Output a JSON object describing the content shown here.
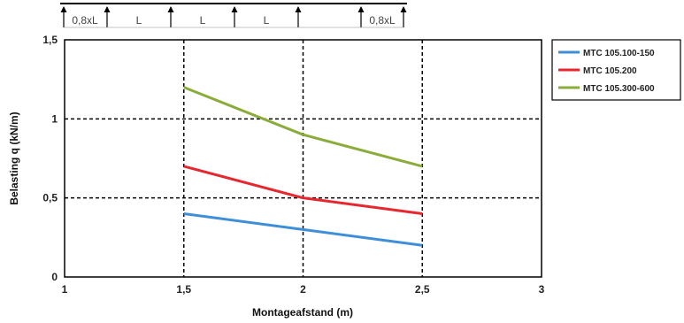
{
  "chart_data": {
    "type": "line",
    "xlabel": "Montageafstand (m)",
    "ylabel": "Belasting q (kN/m)",
    "xlim": [
      1,
      3
    ],
    "ylim": [
      0,
      1.5
    ],
    "x_ticks": [
      1,
      1.5,
      2,
      2.5,
      3
    ],
    "x_tick_labels": [
      "1",
      "1,5",
      "2",
      "2,5",
      "3"
    ],
    "y_ticks": [
      0,
      0.5,
      1,
      1.5
    ],
    "y_tick_labels": [
      "0",
      "0,5",
      "1",
      "1,5"
    ],
    "grid": true,
    "legend_position": "right",
    "series": [
      {
        "name": "MTC 105.100-150",
        "color": "#3f8fd8",
        "x": [
          1.5,
          2,
          2.5
        ],
        "y": [
          0.4,
          0.3,
          0.2
        ]
      },
      {
        "name": "MTC 105.200",
        "color": "#e8262e",
        "x": [
          1.5,
          2,
          2.5
        ],
        "y": [
          0.7,
          0.5,
          0.4
        ]
      },
      {
        "name": "MTC 105.300-600",
        "color": "#8aac3a",
        "x": [
          1.5,
          2,
          2.5
        ],
        "y": [
          1.2,
          0.9,
          0.7
        ]
      }
    ],
    "span_diagram": {
      "labels": [
        "0,8xL",
        "L",
        "L",
        "L",
        "0,8xL"
      ]
    }
  }
}
